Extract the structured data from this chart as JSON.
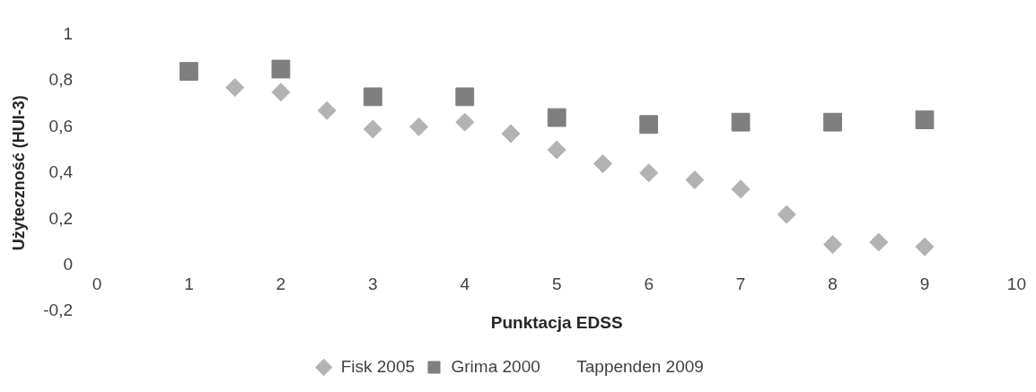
{
  "chart_data": {
    "type": "scatter",
    "xlabel": "Punktacja EDSS",
    "ylabel": "Użyteczność (HUI-3)",
    "series": [
      {
        "name": "Fisk 2005",
        "color": "#b3b3b3",
        "marker": "diamond",
        "x": [
          1.5,
          2,
          2.5,
          3,
          3.5,
          4,
          4.5,
          5,
          5.5,
          6,
          6.5,
          7,
          7.5,
          8,
          8.5,
          9
        ],
        "values": [
          0.77,
          0.75,
          0.67,
          0.59,
          0.6,
          0.62,
          0.57,
          0.5,
          0.44,
          0.4,
          0.37,
          0.33,
          0.22,
          0.09,
          0.1,
          0.08
        ]
      },
      {
        "name": "Grima 2000",
        "color": "#7f7f7f",
        "marker": "square",
        "x": [
          1,
          2,
          3,
          4,
          5,
          6,
          7,
          8,
          9
        ],
        "values": [
          0.84,
          0.85,
          0.73,
          0.73,
          0.64,
          0.61,
          0.62,
          0.62,
          0.63
        ]
      },
      {
        "name": "Tappenden 2009",
        "marker": "none"
      }
    ],
    "xlim": [
      0,
      10
    ],
    "xticks": [
      0,
      1,
      2,
      3,
      4,
      5,
      6,
      7,
      8,
      9,
      10
    ],
    "ylim": [
      -0.2,
      1
    ],
    "yticks": [
      {
        "value": -0.2,
        "label": "-0,2"
      },
      0,
      {
        "value": 0.2,
        "label": "0,2"
      },
      {
        "value": 0.4,
        "label": "0,4"
      },
      {
        "value": 0.6,
        "label": "0,6"
      },
      {
        "value": 0.8,
        "label": "0,8"
      },
      1
    ],
    "grid": false,
    "legend": "bottom"
  }
}
